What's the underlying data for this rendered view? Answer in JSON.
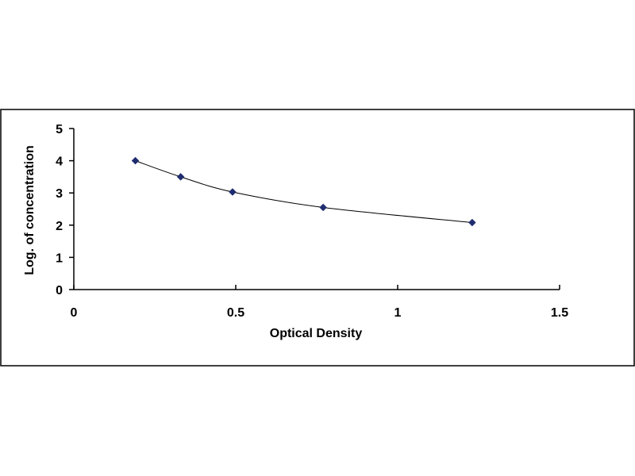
{
  "chart_data": {
    "type": "scatter",
    "title": "",
    "xlabel": "Optical Density",
    "ylabel": "Log. of concentration",
    "xlim": [
      0,
      1.5
    ],
    "ylim": [
      0,
      5
    ],
    "x_ticks": [
      0,
      0.5,
      1,
      1.5
    ],
    "x_tick_labels": [
      "0",
      "0.5",
      "1",
      "1.5"
    ],
    "y_ticks": [
      0,
      1,
      2,
      3,
      4,
      5
    ],
    "y_tick_labels": [
      "0",
      "1",
      "2",
      "3",
      "4",
      "5"
    ],
    "grid": false,
    "legend": "none",
    "series": [
      {
        "x": [
          0.19,
          0.33,
          0.49,
          0.77,
          1.23
        ],
        "y": [
          4.0,
          3.5,
          3.03,
          2.55,
          2.08
        ],
        "color": "#1f2d6e",
        "marker": "diamond",
        "trendline": true
      }
    ]
  }
}
